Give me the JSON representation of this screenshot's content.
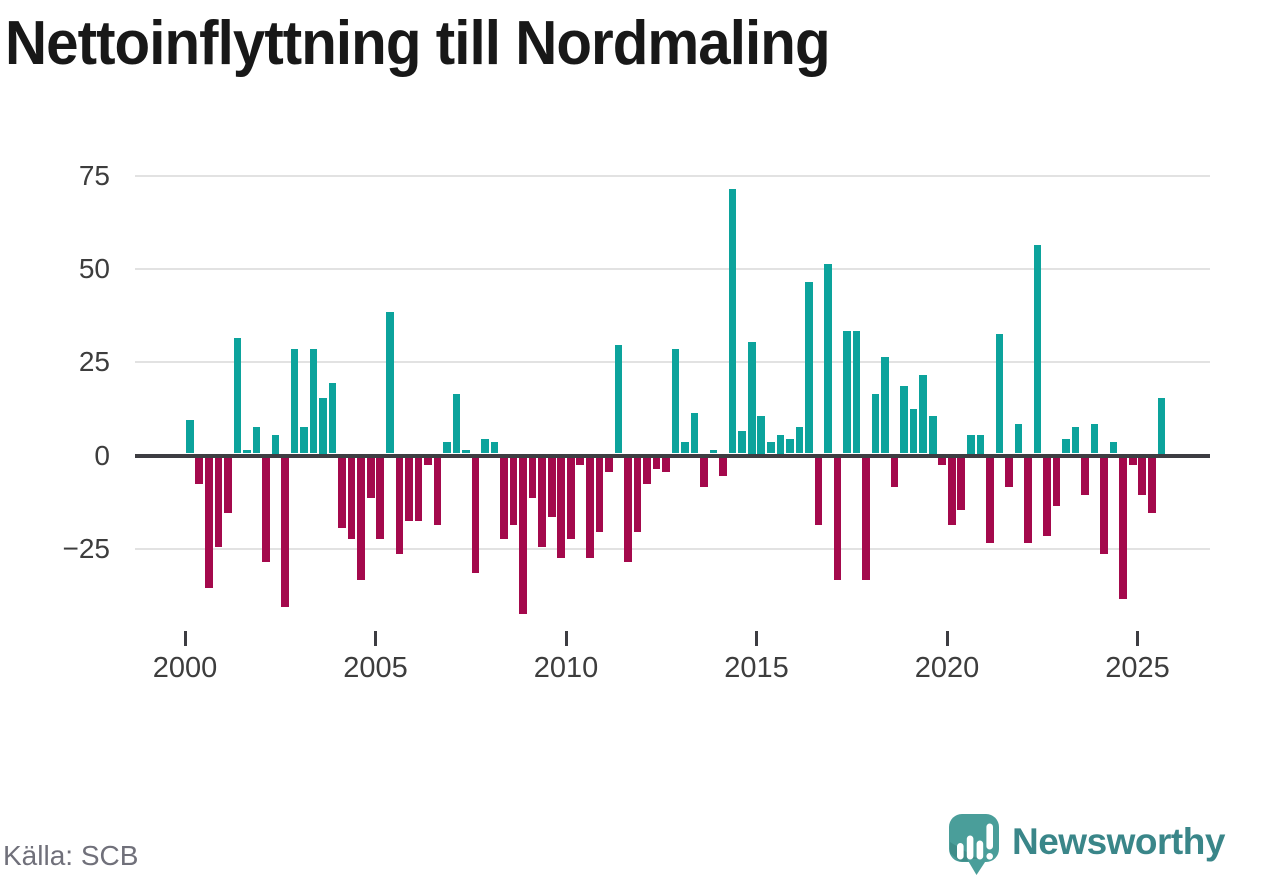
{
  "chart_data": {
    "type": "bar",
    "title": "Nettoinflyttning till Nordmaling",
    "source": "Källa: SCB",
    "frequency": "quarterly",
    "start_period": "2000-Q1",
    "end_period": "2025-Q3",
    "values": [
      9,
      -7,
      -35,
      -24,
      -15,
      31,
      1,
      7,
      -28,
      5,
      -40,
      28,
      7,
      28,
      15,
      19,
      -19,
      -22,
      -33,
      -11,
      -22,
      38,
      -26,
      -17,
      -17,
      -2,
      -18,
      3,
      16,
      1,
      -31,
      4,
      3,
      -22,
      -18,
      -42,
      -11,
      -24,
      -16,
      -27,
      -22,
      -2,
      -27,
      -20,
      -4,
      29,
      -28,
      -20,
      -7,
      -3,
      -4,
      28,
      3,
      11,
      -8,
      1,
      -5,
      71,
      6,
      30,
      10,
      3,
      5,
      4,
      7,
      46,
      -18,
      51,
      -33,
      33,
      33,
      -33,
      16,
      26,
      -8,
      18,
      12,
      21,
      10,
      -2,
      -18,
      -14,
      5,
      5,
      -23,
      32,
      -8,
      8,
      -23,
      56,
      -21,
      -13,
      4,
      7,
      -10,
      8,
      -26,
      3,
      -38,
      -2,
      -10,
      -15,
      15
    ],
    "x_axis": {
      "ticks": [
        {
          "label": "2000",
          "year": 2000
        },
        {
          "label": "2005",
          "year": 2005
        },
        {
          "label": "2010",
          "year": 2010
        },
        {
          "label": "2015",
          "year": 2015
        },
        {
          "label": "2020",
          "year": 2020
        },
        {
          "label": "2025",
          "year": 2025
        }
      ]
    },
    "y_axis": {
      "ticks": [
        {
          "label": "75",
          "value": 75
        },
        {
          "label": "50",
          "value": 50
        },
        {
          "label": "25",
          "value": 25
        },
        {
          "label": "0",
          "value": 0
        },
        {
          "label": "−25",
          "value": -25
        }
      ],
      "gridline_values": [
        75,
        50,
        25,
        -25
      ],
      "ylim": [
        -45,
        80
      ],
      "zero_line": true
    },
    "colors": {
      "positive": "#0ca39c",
      "negative": "#a4094c",
      "gridline": "#e2e2e2",
      "zero_line": "#3d3d42",
      "axis_text": "#3d3d3d"
    },
    "legend": null,
    "grid": "horizontal-only"
  },
  "footer": {
    "source": "Källa: SCB",
    "brand": "Newsworthy",
    "brand_color": "#3a8689",
    "logo_teal": "#4a9e9a",
    "logo_teal_dark": "#3f8d89"
  }
}
